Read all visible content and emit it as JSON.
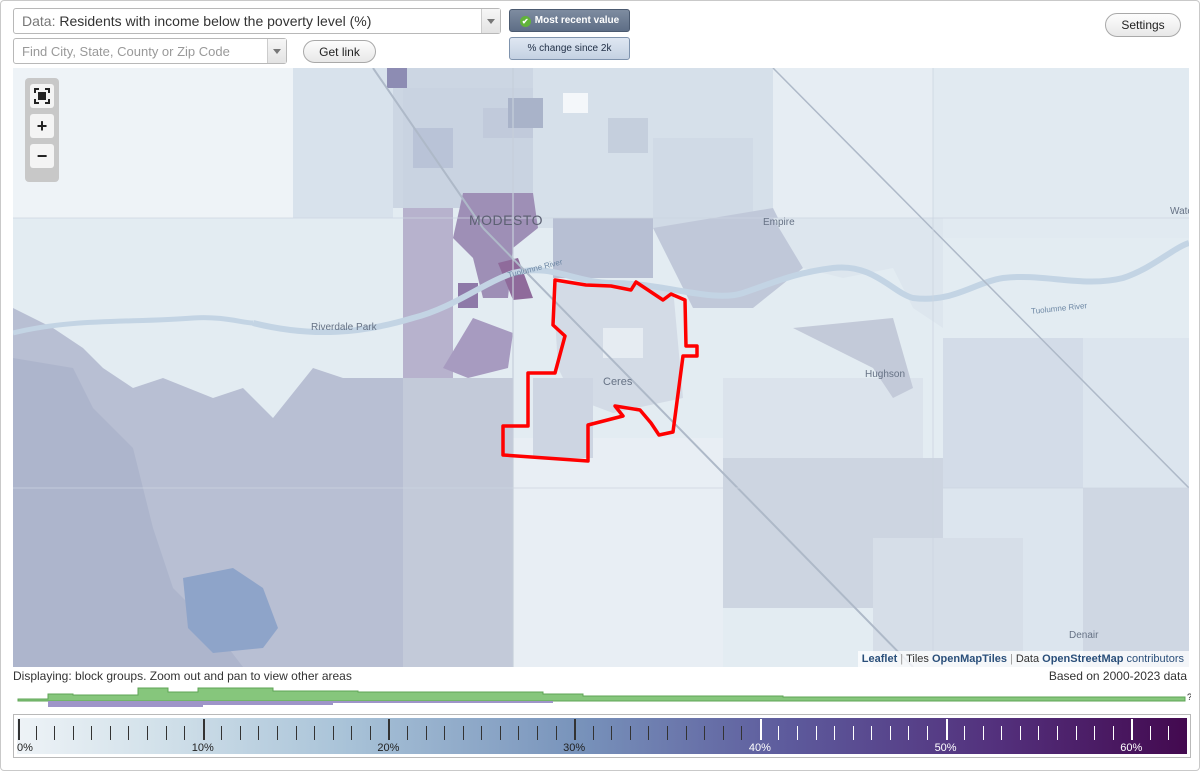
{
  "data_select": {
    "prefix": "Data:",
    "value": "Residents with income below the poverty level (%)"
  },
  "search": {
    "placeholder": "Find City, State, County or Zip Code"
  },
  "buttons": {
    "get_link": "Get link",
    "settings": "Settings"
  },
  "mode_toggle": {
    "most_recent": "Most recent value",
    "change": "% change since 2k",
    "selected": "most_recent"
  },
  "map": {
    "places": [
      {
        "id": "modesto",
        "label": "MODESTO"
      },
      {
        "id": "empire",
        "label": "Empire"
      },
      {
        "id": "riverdale-park",
        "label": "Riverdale Park"
      },
      {
        "id": "ceres",
        "label": "Ceres"
      },
      {
        "id": "hughson",
        "label": "Hughson"
      },
      {
        "id": "denair",
        "label": "Denair"
      },
      {
        "id": "waterford",
        "label": "Wate"
      }
    ],
    "rivers": [
      {
        "id": "tuolumne-river-east",
        "label": "Tuolumne River"
      },
      {
        "id": "tuolumne-river-west",
        "label": "Tuolumne River"
      }
    ],
    "highlighted_area": "Ceres",
    "attribution": {
      "leaflet": "Leaflet",
      "tiles_prefix": "Tiles",
      "tiles": "OpenMapTiles",
      "data_prefix": "Data",
      "data": "OpenStreetMap",
      "contributors": "contributors"
    }
  },
  "footer": {
    "displaying": "Displaying: block groups. Zoom out and pan to view other areas",
    "based_on": "Based on 2000-2023 data",
    "histogram_unknown": "?"
  },
  "legend": {
    "unit": "%",
    "min": 0,
    "max": 63,
    "major_ticks": [
      0,
      10,
      20,
      30,
      40,
      50,
      60
    ],
    "labels": [
      "0%",
      "10%",
      "20%",
      "30%",
      "40%",
      "50%",
      "60%"
    ],
    "colors": {
      "low": "#eef3f7",
      "mid": "#7893bb",
      "high": "#43094f",
      "highlight": "#ff0000",
      "histogram_green": "#86c67c",
      "histogram_purple": "#9e94c8"
    }
  }
}
